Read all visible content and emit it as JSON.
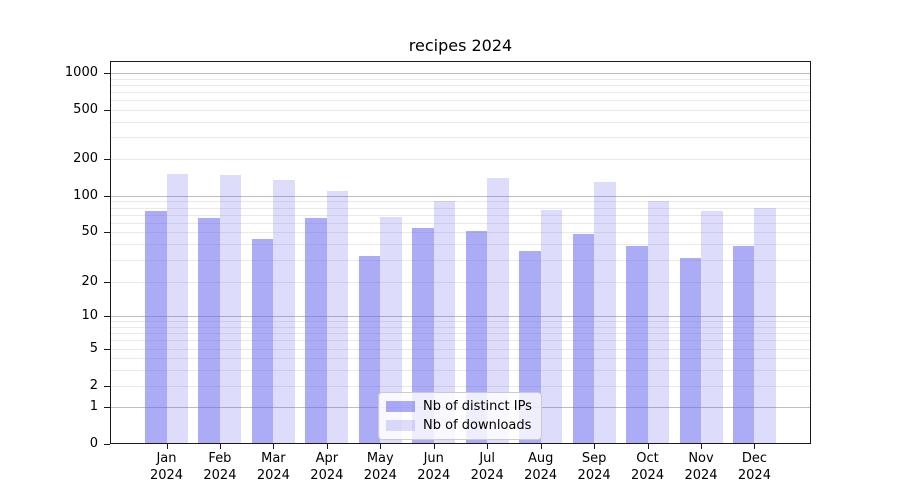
{
  "chart_data": {
    "type": "bar",
    "title": "recipes 2024",
    "yscale": "symlog",
    "grid": true,
    "categories": [
      "Jan 2024",
      "Feb 2024",
      "Mar 2024",
      "Apr 2024",
      "May 2024",
      "Jun 2024",
      "Jul 2024",
      "Aug 2024",
      "Sep 2024",
      "Oct 2024",
      "Nov 2024",
      "Dec 2024"
    ],
    "series": [
      {
        "name": "Nb of distinct IPs",
        "color": "#6666ee",
        "alpha": 0.55,
        "values": [
          75,
          65,
          44,
          65,
          32,
          54,
          51,
          35,
          48,
          39,
          31,
          39
        ]
      },
      {
        "name": "Nb of downloads",
        "color": "#6666ee",
        "alpha": 0.22,
        "values": [
          150,
          148,
          135,
          110,
          67,
          91,
          141,
          76,
          129,
          90,
          75,
          79
        ]
      }
    ],
    "yticks": [
      0,
      1,
      2,
      5,
      10,
      20,
      50,
      100,
      200,
      500,
      1000
    ],
    "ylim": [
      0,
      1100
    ],
    "xlabel": "",
    "ylabel": "",
    "legend_position": "lower center",
    "colors": {
      "bar_fill_base": "#6666ee",
      "axis": "#1a1a1a",
      "grid_major": "#bdbdbd",
      "grid_minor": "#e9e9e9",
      "legend_border": "#cbcbcb"
    }
  }
}
